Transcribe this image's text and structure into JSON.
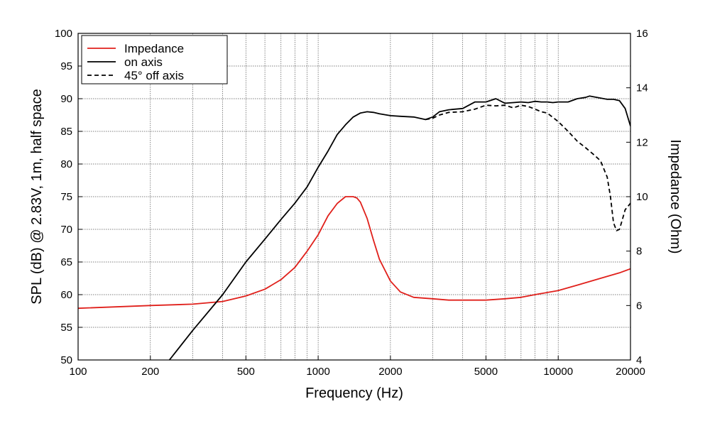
{
  "chart_data": {
    "type": "line",
    "xlabel": "Frequency (Hz)",
    "ylabel": "SPL (dB) @ 2.83V, 1m, half space",
    "y2label": "Impedance (Ohm)",
    "xscale": "log",
    "xlim": [
      100,
      20000
    ],
    "ylim": [
      50,
      100
    ],
    "y2lim": [
      4,
      16
    ],
    "grid": true,
    "legend_position": "top-left",
    "x_tick_labels": [
      "100",
      "200",
      "500",
      "1000",
      "2000",
      "5000",
      "10000",
      "20000"
    ],
    "y_tick_labels": [
      "50",
      "55",
      "60",
      "65",
      "70",
      "75",
      "80",
      "85",
      "90",
      "95",
      "100"
    ],
    "y2_tick_labels": [
      "4",
      "6",
      "8",
      "10",
      "12",
      "14",
      "16"
    ],
    "series": [
      {
        "name": "Impedance",
        "axis": "right",
        "color": "#e0201b",
        "dash": "solid",
        "x": [
          100,
          200,
          300,
          400,
          500,
          600,
          700,
          800,
          900,
          1000,
          1100,
          1200,
          1300,
          1400,
          1450,
          1500,
          1600,
          1700,
          1800,
          2000,
          2200,
          2500,
          3000,
          3500,
          4000,
          5000,
          6000,
          7000,
          8000,
          10000,
          12000,
          15000,
          18000,
          20000
        ],
        "values": [
          5.9,
          6.0,
          6.05,
          6.15,
          6.35,
          6.6,
          6.95,
          7.4,
          8.0,
          8.6,
          9.3,
          9.75,
          10.0,
          10.0,
          9.95,
          9.8,
          9.2,
          8.4,
          7.7,
          6.9,
          6.5,
          6.3,
          6.25,
          6.2,
          6.2,
          6.2,
          6.25,
          6.3,
          6.4,
          6.55,
          6.75,
          7.0,
          7.2,
          7.35
        ]
      },
      {
        "name": "on axis",
        "axis": "left",
        "color": "#000000",
        "dash": "solid",
        "x": [
          240,
          300,
          400,
          500,
          600,
          700,
          800,
          900,
          1000,
          1100,
          1200,
          1300,
          1400,
          1500,
          1600,
          1700,
          1800,
          2000,
          2200,
          2500,
          2800,
          3000,
          3200,
          3500,
          4000,
          4500,
          5000,
          5500,
          6000,
          6500,
          7000,
          7500,
          8000,
          8500,
          9000,
          9500,
          10000,
          11000,
          12000,
          13000,
          13500,
          14000,
          15000,
          16000,
          17000,
          18000,
          19000,
          20000
        ],
        "values": [
          50,
          54.5,
          60,
          65,
          68.5,
          71.5,
          74,
          76.5,
          79.5,
          82,
          84.5,
          86,
          87.2,
          87.8,
          88,
          87.9,
          87.7,
          87.4,
          87.3,
          87.2,
          86.8,
          87.2,
          88,
          88.3,
          88.5,
          89.5,
          89.5,
          90,
          89.3,
          89.4,
          89.5,
          89.4,
          89.6,
          89.5,
          89.5,
          89.4,
          89.5,
          89.5,
          90,
          90.2,
          90.4,
          90.3,
          90.1,
          89.9,
          89.9,
          89.7,
          88.5,
          85.8
        ]
      },
      {
        "name": "45° off axis",
        "axis": "left",
        "color": "#000000",
        "dash": "dashed",
        "x": [
          2800,
          3000,
          3200,
          3500,
          4000,
          4500,
          5000,
          5500,
          6000,
          6500,
          7000,
          7500,
          8000,
          8500,
          9000,
          10000,
          11000,
          12000,
          13000,
          14000,
          15000,
          16000,
          16500,
          17000,
          17500,
          18000,
          18500,
          19000,
          19500,
          20000
        ],
        "values": [
          86.8,
          87.0,
          87.5,
          87.9,
          88.0,
          88.4,
          89.0,
          88.9,
          89.0,
          88.6,
          89.0,
          88.8,
          88.4,
          88.0,
          87.8,
          86.5,
          85.0,
          83.5,
          82.5,
          81.5,
          80.5,
          78.0,
          75.0,
          71.0,
          69.8,
          70.0,
          71.5,
          73.0,
          73.5,
          74.0
        ]
      }
    ]
  }
}
